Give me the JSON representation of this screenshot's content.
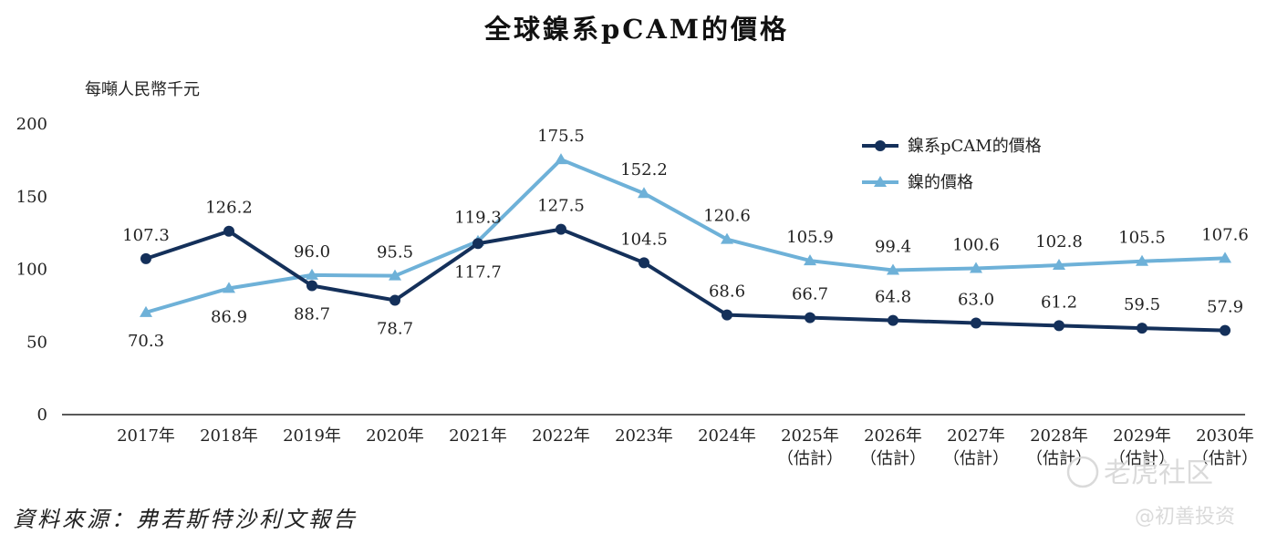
{
  "chart_data": {
    "type": "line",
    "title": "全球鎳系pCAM的價格",
    "ylabel": "每噸人民幣千元",
    "ylim": [
      0,
      200
    ],
    "yticks": [
      "0",
      "50",
      "100",
      "150",
      "200"
    ],
    "categories": [
      [
        "2017年"
      ],
      [
        "2018年"
      ],
      [
        "2019年"
      ],
      [
        "2020年"
      ],
      [
        "2021年"
      ],
      [
        "2022年"
      ],
      [
        "2023年"
      ],
      [
        "2024年"
      ],
      [
        "2025年",
        "（估計）"
      ],
      [
        "2026年",
        "（估計）"
      ],
      [
        "2027年",
        "（估計）"
      ],
      [
        "2028年",
        "（估計）"
      ],
      [
        "2029年",
        "（估計）"
      ],
      [
        "2030年",
        "（估計）"
      ]
    ],
    "series": [
      {
        "name": "鎳系pCAM的價格",
        "color": "#14305a",
        "marker": "circle",
        "values": [
          107.3,
          126.2,
          88.7,
          78.7,
          117.7,
          127.5,
          104.5,
          68.6,
          66.7,
          64.8,
          63.0,
          61.2,
          59.5,
          57.9
        ],
        "labels": [
          "107.3",
          "126.2",
          "88.7",
          "78.7",
          "117.7",
          "127.5",
          "104.5",
          "68.6",
          "66.7",
          "64.8",
          "63.0",
          "61.2",
          "59.5",
          "57.9"
        ],
        "label_side": [
          "above",
          "above",
          "below",
          "below",
          "below",
          "above",
          "above",
          "above",
          "above",
          "above",
          "above",
          "above",
          "above",
          "above"
        ]
      },
      {
        "name": "鎳的價格",
        "color": "#6eb1d8",
        "marker": "triangle",
        "values": [
          70.3,
          86.9,
          96.0,
          95.5,
          119.3,
          175.5,
          152.2,
          120.6,
          105.9,
          99.4,
          100.6,
          102.8,
          105.5,
          107.6
        ],
        "labels": [
          "70.3",
          "86.9",
          "96.0",
          "95.5",
          "119.3",
          "175.5",
          "152.2",
          "120.6",
          "105.9",
          "99.4",
          "100.6",
          "102.8",
          "105.5",
          "107.6"
        ],
        "label_side": [
          "below",
          "below",
          "above",
          "above",
          "above",
          "above",
          "above",
          "above",
          "above",
          "above",
          "above",
          "above",
          "above",
          "above"
        ]
      }
    ],
    "legend": "top-right",
    "grid": false
  },
  "source": "資料來源：弗若斯特沙利文報告",
  "watermark": {
    "main": "老虎社区",
    "sub": "@初善投资"
  }
}
